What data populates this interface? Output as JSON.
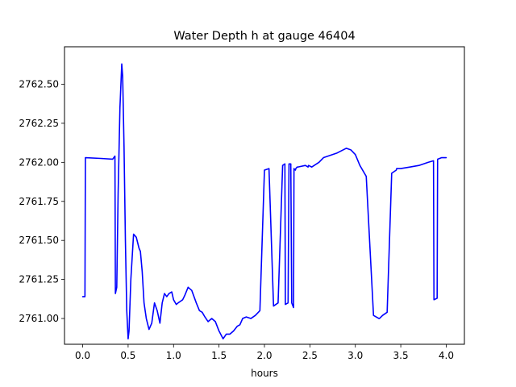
{
  "chart_data": {
    "type": "line",
    "title": "Water Depth h at gauge 46404",
    "xlabel": "hours",
    "ylabel": "",
    "xlim": [
      -0.2,
      4.2
    ],
    "ylim": [
      2760.835,
      2762.74
    ],
    "grid": false,
    "x_ticks": [
      {
        "value": 0.0,
        "label": "0.0"
      },
      {
        "value": 0.5,
        "label": "0.5"
      },
      {
        "value": 1.0,
        "label": "1.0"
      },
      {
        "value": 1.5,
        "label": "1.5"
      },
      {
        "value": 2.0,
        "label": "2.0"
      },
      {
        "value": 2.5,
        "label": "2.5"
      },
      {
        "value": 3.0,
        "label": "3.0"
      },
      {
        "value": 3.5,
        "label": "3.5"
      },
      {
        "value": 4.0,
        "label": "4.0"
      }
    ],
    "y_ticks": [
      {
        "value": 2761.0,
        "label": "2761.00"
      },
      {
        "value": 2761.25,
        "label": "2761.25"
      },
      {
        "value": 2761.5,
        "label": "2761.50"
      },
      {
        "value": 2761.75,
        "label": "2761.75"
      },
      {
        "value": 2762.0,
        "label": "2762.00"
      },
      {
        "value": 2762.25,
        "label": "2762.25"
      },
      {
        "value": 2762.5,
        "label": "2762.50"
      }
    ],
    "series": [
      {
        "color": "#0000ff",
        "x": [
          0.0,
          0.025,
          0.03,
          0.2,
          0.33,
          0.355,
          0.36,
          0.375,
          0.39,
          0.41,
          0.43,
          0.44,
          0.455,
          0.47,
          0.485,
          0.5,
          0.51,
          0.53,
          0.56,
          0.59,
          0.62,
          0.635,
          0.655,
          0.675,
          0.7,
          0.73,
          0.76,
          0.79,
          0.82,
          0.85,
          0.875,
          0.9,
          0.925,
          0.95,
          0.98,
          1.0,
          1.03,
          1.05,
          1.075,
          1.1,
          1.125,
          1.16,
          1.2,
          1.25,
          1.285,
          1.315,
          1.345,
          1.38,
          1.42,
          1.46,
          1.5,
          1.545,
          1.58,
          1.62,
          1.66,
          1.7,
          1.73,
          1.76,
          1.8,
          1.85,
          1.9,
          1.95,
          2.0,
          2.05,
          2.1,
          2.15,
          2.2,
          2.225,
          2.23,
          2.26,
          2.27,
          2.29,
          2.3,
          2.32,
          2.325,
          2.34,
          2.345,
          2.36,
          2.37,
          2.45,
          2.48,
          2.485,
          2.52,
          2.6,
          2.65,
          2.8,
          2.9,
          2.95,
          3.0,
          3.05,
          3.12,
          3.2,
          3.26,
          3.265,
          3.3,
          3.35,
          3.4,
          3.45,
          3.455,
          3.5,
          3.6,
          3.7,
          3.8,
          3.86,
          3.865,
          3.9,
          3.905,
          3.95,
          4.0
        ],
        "y": [
          2761.14,
          2761.14,
          2762.03,
          2762.025,
          2762.02,
          2762.04,
          2761.16,
          2761.2,
          2761.8,
          2762.35,
          2762.63,
          2762.55,
          2762.1,
          2761.5,
          2761.05,
          2760.87,
          2760.92,
          2761.25,
          2761.54,
          2761.52,
          2761.45,
          2761.43,
          2761.3,
          2761.1,
          2761.0,
          2760.93,
          2760.97,
          2761.1,
          2761.05,
          2760.97,
          2761.1,
          2761.16,
          2761.14,
          2761.16,
          2761.17,
          2761.12,
          2761.09,
          2761.1,
          2761.11,
          2761.12,
          2761.15,
          2761.2,
          2761.18,
          2761.1,
          2761.05,
          2761.04,
          2761.01,
          2760.98,
          2761.0,
          2760.98,
          2760.92,
          2760.87,
          2760.9,
          2760.9,
          2760.92,
          2760.95,
          2760.96,
          2761.0,
          2761.01,
          2761.0,
          2761.02,
          2761.05,
          2761.95,
          2761.96,
          2761.08,
          2761.1,
          2761.98,
          2761.99,
          2761.09,
          2761.1,
          2761.99,
          2761.99,
          2761.1,
          2761.07,
          2761.96,
          2761.95,
          2761.96,
          2761.97,
          2761.97,
          2761.98,
          2761.97,
          2761.98,
          2761.97,
          2762.0,
          2762.03,
          2762.06,
          2762.09,
          2762.08,
          2762.05,
          2761.98,
          2761.91,
          2761.02,
          2761.0,
          2761.0,
          2761.02,
          2761.04,
          2761.93,
          2761.95,
          2761.96,
          2761.96,
          2761.97,
          2761.98,
          2762.0,
          2762.01,
          2761.12,
          2761.13,
          2762.02,
          2762.03,
          2762.03
        ]
      }
    ]
  }
}
